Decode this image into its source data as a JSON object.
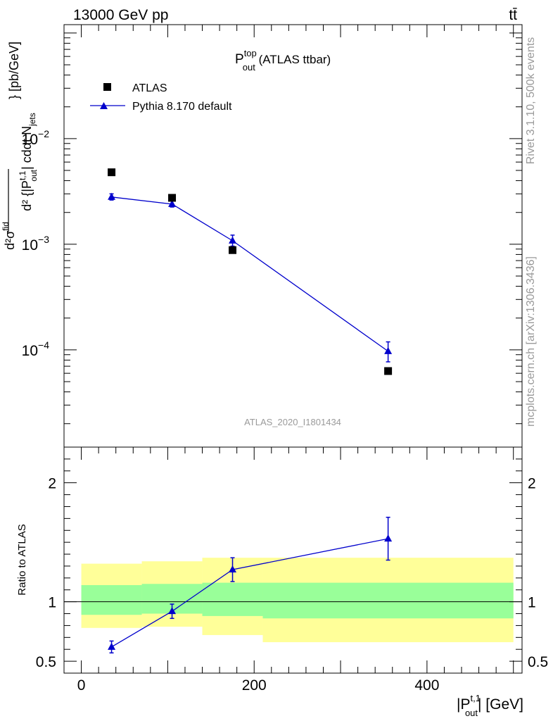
{
  "header": {
    "left_label": "13000 GeV pp",
    "right_label": "tt̄"
  },
  "side_labels": {
    "rivet": "Rivet 3.1.10,  500k events",
    "mcplots": "mcplots.cern.ch [arXiv:1306.3436]"
  },
  "colors": {
    "data": "#000000",
    "mc": "#0000cc",
    "band_inner": "#99ff99",
    "band_outer": "#ffff99",
    "watermark": "#9a9a9a"
  },
  "chart_data": [
    {
      "type": "scatter",
      "panel": "main",
      "title_main": "P",
      "title_sup": "top",
      "title_sub": "out",
      "title_suffix": " (ATLAS ttbar)",
      "watermark": "ATLAS_2020_I1801434",
      "ylabel": "d²{|P_out^t,1| cdαt N_jets} d²σ^fid [pb/GeV]",
      "ylabel_num": "d²σ",
      "ylabel_num_sup": "fid",
      "ylabel_den": "d² {|P",
      "ylabel_den_sup": "t,1",
      "ylabel_den_sub": "out",
      "ylabel_den_mid": "| cdαt N",
      "ylabel_den_sub2": "jets",
      "ylabel_unit": "} [pb/GeV]",
      "yscale": "log",
      "ylim": [
        1.2e-05,
        0.12
      ],
      "xlim": [
        -20,
        510
      ],
      "yticks": [
        {
          "value": 0.01,
          "base": "10",
          "exp": "−2"
        },
        {
          "value": 0.001,
          "base": "10",
          "exp": "−3"
        },
        {
          "value": 0.0001,
          "base": "10",
          "exp": "−4"
        }
      ],
      "legend": [
        {
          "name": "ATLAS",
          "marker": "square"
        },
        {
          "name": "Pythia 8.170 default",
          "marker": "triangle"
        }
      ],
      "series": [
        {
          "name": "ATLAS",
          "x": [
            35,
            105,
            175,
            355
          ],
          "y": [
            0.0048,
            0.00275,
            0.00088,
            6.3e-05
          ]
        },
        {
          "name": "Pythia 8.170 default",
          "x": [
            35,
            105,
            175,
            355
          ],
          "y": [
            0.0028,
            0.0024,
            0.00108,
            9.7e-05
          ],
          "yerr_low": [
            0.00018,
            0.00015,
            0.00012,
            2e-05
          ],
          "yerr_high": [
            0.0002,
            0.00016,
            0.00014,
            2.2e-05
          ]
        }
      ]
    },
    {
      "type": "line",
      "panel": "ratio",
      "ylabel": "Ratio to ATLAS",
      "ylim": [
        0.4,
        2.3
      ],
      "xlim": [
        -20,
        510
      ],
      "yticks": [
        {
          "value": 0.5,
          "label": "0.5"
        },
        {
          "value": 1,
          "label": "1"
        },
        {
          "value": 2,
          "label": "2"
        }
      ],
      "xticks": [
        {
          "value": 0,
          "label": "0"
        },
        {
          "value": 200,
          "label": "200"
        },
        {
          "value": 400,
          "label": "400"
        }
      ],
      "xlabel_pre": "|P",
      "xlabel_sup": "t,1",
      "xlabel_sub": "out",
      "xlabel_post": "| [GeV]",
      "bins": [
        {
          "lo": 0,
          "hi": 70,
          "inner": [
            0.89,
            1.14
          ],
          "outer": [
            0.78,
            1.32
          ]
        },
        {
          "lo": 70,
          "hi": 140,
          "inner": [
            0.9,
            1.15
          ],
          "outer": [
            0.79,
            1.34
          ]
        },
        {
          "lo": 140,
          "hi": 210,
          "inner": [
            0.88,
            1.16
          ],
          "outer": [
            0.72,
            1.37
          ]
        },
        {
          "lo": 210,
          "hi": 500,
          "inner": [
            0.86,
            1.16
          ],
          "outer": [
            0.66,
            1.37
          ]
        }
      ],
      "series": [
        {
          "name": "Pythia 8.170 default",
          "x": [
            35,
            105,
            175,
            355
          ],
          "y": [
            0.62,
            0.92,
            1.27,
            1.53
          ],
          "yerr_low": [
            0.05,
            0.06,
            0.1,
            0.18
          ],
          "yerr_high": [
            0.05,
            0.06,
            0.1,
            0.18
          ]
        }
      ]
    }
  ]
}
